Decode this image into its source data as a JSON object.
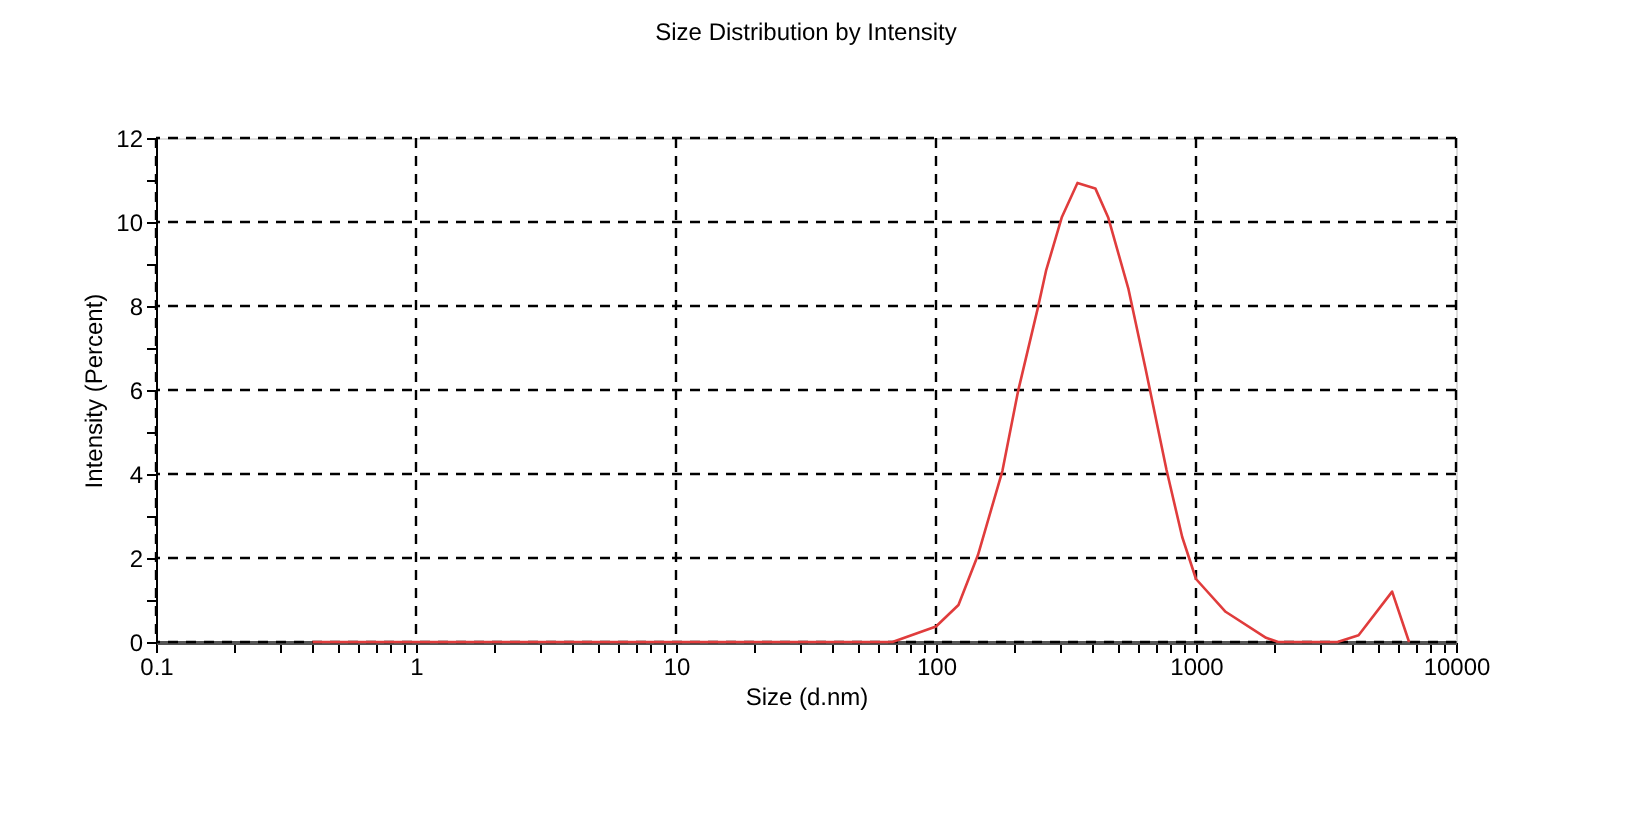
{
  "chart_data": {
    "type": "line",
    "title": "Size Distribution by Intensity",
    "xlabel": "Size (d.nm)",
    "ylabel": "Intensity (Percent)",
    "log": "x",
    "grid": true,
    "marker": "none",
    "line_style": "solid",
    "xlim": [
      0.1,
      10000
    ],
    "xticks": [
      0.1,
      {
        "value": 0.2,
        "label": null
      },
      {
        "value": 0.3,
        "label": null
      },
      {
        "value": 0.4,
        "label": null
      },
      {
        "value": 0.5,
        "label": null
      },
      {
        "value": 0.6,
        "label": null
      },
      {
        "value": 0.7,
        "label": null
      },
      {
        "value": 0.8,
        "label": null
      },
      {
        "value": 0.9,
        "label": null
      },
      1,
      {
        "value": 2,
        "label": null
      },
      {
        "value": 3,
        "label": null
      },
      {
        "value": 4,
        "label": null
      },
      {
        "value": 5,
        "label": null
      },
      {
        "value": 6,
        "label": null
      },
      {
        "value": 7,
        "label": null
      },
      {
        "value": 8,
        "label": null
      },
      {
        "value": 9,
        "label": null
      },
      10,
      {
        "value": 20,
        "label": null
      },
      {
        "value": 30,
        "label": null
      },
      {
        "value": 40,
        "label": null
      },
      {
        "value": 50,
        "label": null
      },
      {
        "value": 60,
        "label": null
      },
      {
        "value": 70,
        "label": null
      },
      {
        "value": 80,
        "label": null
      },
      {
        "value": 90,
        "label": null
      },
      100,
      {
        "value": 200,
        "label": null
      },
      {
        "value": 300,
        "label": null
      },
      {
        "value": 400,
        "label": null
      },
      {
        "value": 500,
        "label": null
      },
      {
        "value": 600,
        "label": null
      },
      {
        "value": 700,
        "label": null
      },
      {
        "value": 800,
        "label": null
      },
      {
        "value": 900,
        "label": null
      },
      1000,
      {
        "value": 2000,
        "label": null
      },
      {
        "value": 3000,
        "label": null
      },
      {
        "value": 4000,
        "label": null
      },
      {
        "value": 5000,
        "label": null
      },
      {
        "value": 6000,
        "label": null
      },
      {
        "value": 7000,
        "label": null
      },
      {
        "value": 8000,
        "label": null
      },
      {
        "value": 9000,
        "label": null
      },
      10000
    ],
    "ylim": [
      0,
      12
    ],
    "yticks": [
      0,
      {
        "value": 1,
        "label": null
      },
      2,
      {
        "value": 3,
        "label": null
      },
      4,
      {
        "value": 5,
        "label": null
      },
      6,
      {
        "value": 7,
        "label": null
      },
      8,
      {
        "value": 9,
        "label": null
      },
      10,
      {
        "value": 11,
        "label": null
      },
      12
    ],
    "series": [
      {
        "color": "#e03c3c",
        "x": [
          0.4,
          68,
          100,
          122,
          145,
          180,
          207,
          247,
          265,
          305,
          350,
          410,
          460,
          550,
          640,
          770,
          885,
          1000,
          1300,
          1860,
          2070,
          3500,
          4220,
          5680,
          6600
        ],
        "values": [
          0,
          0,
          0.37,
          0.88,
          2.07,
          4.07,
          5.98,
          7.98,
          8.84,
          10.12,
          10.93,
          10.8,
          10.1,
          8.4,
          6.5,
          4.1,
          2.5,
          1.5,
          0.72,
          0.1,
          0,
          0,
          0.16,
          1.2,
          0
        ]
      }
    ]
  }
}
